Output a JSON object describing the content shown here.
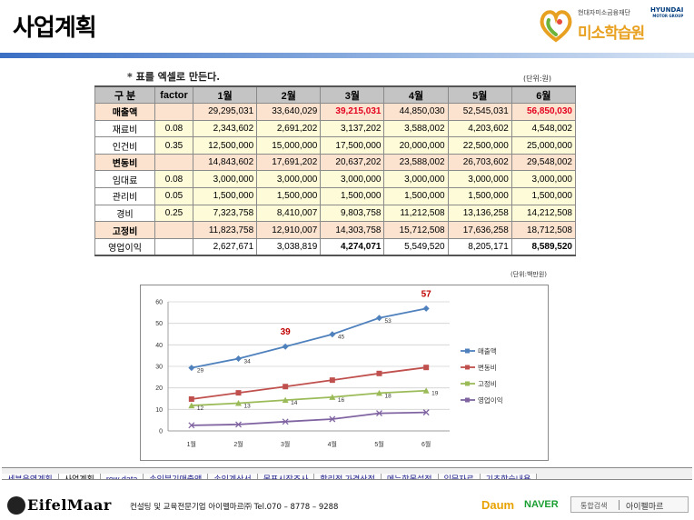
{
  "header": {
    "title": "사업계획",
    "logo_top": "현대자미소금융재단",
    "logo_main": "미소학습원",
    "logo_brand_1": "HYUNDAI",
    "logo_brand_2": "MOTOR GROUP"
  },
  "note": "* 표를 엑셀로 만든다.",
  "unit_table": "(단위:원)",
  "table": {
    "headers": [
      "구 분",
      "factor",
      "1월",
      "2월",
      "3월",
      "4월",
      "5월",
      "6월"
    ],
    "rows": [
      {
        "label": "매출액",
        "factor": "",
        "values": [
          "29,295,031",
          "33,640,029",
          "39,215,031",
          "44,850,030",
          "52,545,031",
          "56,850,030"
        ]
      },
      {
        "label": "재료비",
        "factor": "0.08",
        "values": [
          "2,343,602",
          "2,691,202",
          "3,137,202",
          "3,588,002",
          "4,203,602",
          "4,548,002"
        ]
      },
      {
        "label": "인건비",
        "factor": "0.35",
        "values": [
          "12,500,000",
          "15,000,000",
          "17,500,000",
          "20,000,000",
          "22,500,000",
          "25,000,000"
        ]
      },
      {
        "label": "변동비",
        "factor": "",
        "values": [
          "14,843,602",
          "17,691,202",
          "20,637,202",
          "23,588,002",
          "26,703,602",
          "29,548,002"
        ]
      },
      {
        "label": "임대료",
        "factor": "0.08",
        "values": [
          "3,000,000",
          "3,000,000",
          "3,000,000",
          "3,000,000",
          "3,000,000",
          "3,000,000"
        ]
      },
      {
        "label": "관리비",
        "factor": "0.05",
        "values": [
          "1,500,000",
          "1,500,000",
          "1,500,000",
          "1,500,000",
          "1,500,000",
          "1,500,000"
        ]
      },
      {
        "label": "경비",
        "factor": "0.25",
        "values": [
          "7,323,758",
          "8,410,007",
          "9,803,758",
          "11,212,508",
          "13,136,258",
          "14,212,508"
        ]
      },
      {
        "label": "고정비",
        "factor": "",
        "values": [
          "11,823,758",
          "12,910,007",
          "14,303,758",
          "15,712,508",
          "17,636,258",
          "18,712,508"
        ]
      },
      {
        "label": "영업이익",
        "factor": "",
        "values": [
          "2,627,671",
          "3,038,819",
          "4,274,071",
          "5,549,520",
          "8,205,171",
          "8,589,520"
        ]
      }
    ]
  },
  "unit_chart": "(단위:백만원)",
  "chart_data": {
    "type": "line",
    "categories": [
      "1월",
      "2월",
      "3월",
      "4월",
      "5월",
      "6월"
    ],
    "ylim": [
      0,
      60
    ],
    "yticks": [
      0,
      10,
      20,
      30,
      40,
      50,
      60
    ],
    "grid": true,
    "legend": "right",
    "series": [
      {
        "name": "매출액",
        "color": "#4f81bd",
        "marker": "diamond",
        "values": [
          29.3,
          33.6,
          39.2,
          44.9,
          52.5,
          56.9
        ],
        "labels": [
          "29",
          "34",
          "",
          "45",
          "53",
          ""
        ]
      },
      {
        "name": "변동비",
        "color": "#c0504d",
        "marker": "square",
        "values": [
          14.8,
          17.7,
          20.6,
          23.6,
          26.7,
          29.5
        ],
        "labels": [
          "",
          "",
          "",
          "",
          "",
          ""
        ]
      },
      {
        "name": "고정비",
        "color": "#9bbb59",
        "marker": "triangle",
        "values": [
          11.8,
          12.9,
          14.3,
          15.7,
          17.6,
          18.7
        ],
        "labels": [
          "12",
          "13",
          "14",
          "16",
          "18",
          "19"
        ]
      },
      {
        "name": "영업이익",
        "color": "#8064a2",
        "marker": "x",
        "values": [
          2.6,
          3.0,
          4.3,
          5.5,
          8.2,
          8.6
        ],
        "labels": [
          "",
          "",
          "",
          "",
          "",
          ""
        ]
      }
    ],
    "annotations": [
      {
        "text": "39",
        "category": "3월",
        "value": 39.2,
        "color": "#c00000"
      },
      {
        "text": "57",
        "category": "6월",
        "value": 56.9,
        "color": "#c00000"
      }
    ]
  },
  "tabs": [
    {
      "label": "세부운영계획",
      "active": false
    },
    {
      "label": "사업계획",
      "active": true
    },
    {
      "label": "row data",
      "active": false
    },
    {
      "label": "손익분기매출액",
      "active": false
    },
    {
      "label": "손익계산서",
      "active": false
    },
    {
      "label": "목표시장조사",
      "active": false
    },
    {
      "label": "합리적 가격산정",
      "active": false
    },
    {
      "label": "메뉴항목설정",
      "active": false
    },
    {
      "label": "입문자료",
      "active": false
    },
    {
      "label": "기초학습내용",
      "active": false
    }
  ],
  "footer": {
    "brand": "EifelMaar",
    "text": "컨설팅 및 교육전문기업 아이펠마르㈜ Tel.070 – 8778 – 9288",
    "daum": "Daum",
    "naver": "NAVER",
    "search_label": "통합검색",
    "search_value": "아이펠마르"
  }
}
